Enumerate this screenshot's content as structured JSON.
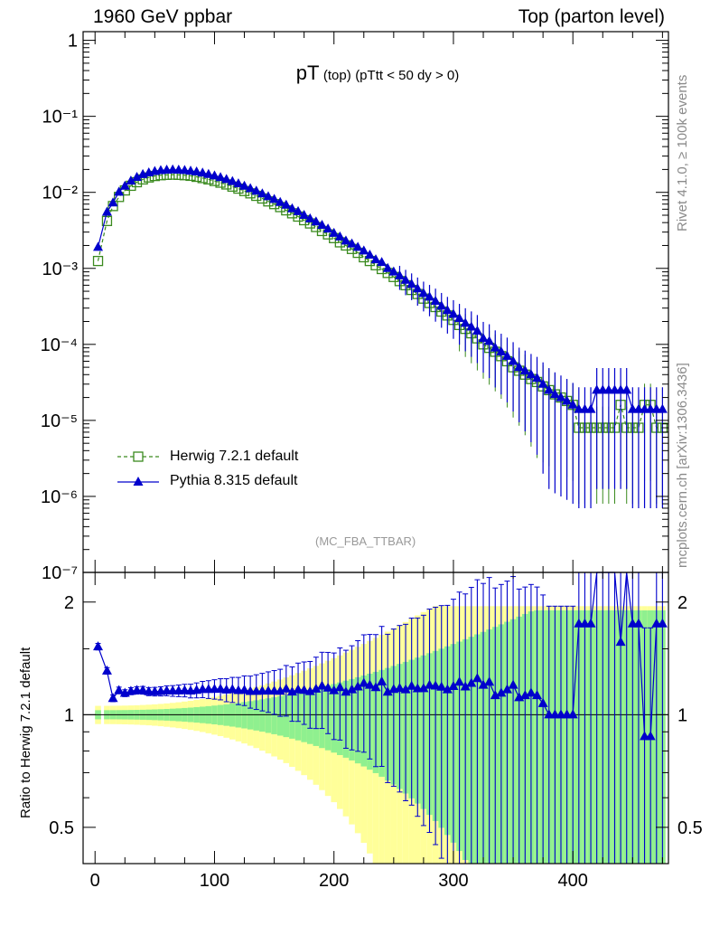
{
  "header": {
    "left": "1960 GeV ppbar",
    "right": "Top (parton level)"
  },
  "side_text": {
    "top": "Rivet 4.1.0, ≥ 100k events",
    "bottom": "mcplots.cern.ch [arXiv:1306.3436]"
  },
  "title": {
    "main": "pT",
    "sub1": "(top)",
    "sub2": "(pTtt < 50 dy > 0)"
  },
  "analysis_label": "(MC_FBA_TTBAR)",
  "legend": {
    "herwig": "Herwig 7.2.1 default",
    "pythia": "Pythia 8.315 default"
  },
  "ratio_ylabel": "Ratio to Herwig 7.2.1 default",
  "colors": {
    "herwig": "#3a8a1e",
    "pythia": "#0000cc",
    "band_inner": "#8ff08f",
    "band_outer": "#ffff99"
  },
  "chart_data": {
    "type": "line",
    "xlim": [
      -10,
      480
    ],
    "main_ylim": [
      1e-07,
      1.3
    ],
    "main_scale": "log",
    "main_yticks": [
      {
        "v": 1,
        "label": "1"
      },
      {
        "v": 0.1,
        "label": "10⁻¹"
      },
      {
        "v": 0.01,
        "label": "10⁻²"
      },
      {
        "v": 0.001,
        "label": "10⁻³"
      },
      {
        "v": 0.0001,
        "label": "10⁻⁴"
      },
      {
        "v": 1e-05,
        "label": "10⁻⁵"
      },
      {
        "v": 1e-06,
        "label": "10⁻⁶"
      },
      {
        "v": 1e-07,
        "label": "10⁻⁷"
      }
    ],
    "ratio_ylim": [
      0.4,
      2.4
    ],
    "ratio_scale": "log",
    "ratio_yticks": [
      {
        "v": 0.5,
        "label": "0.5"
      },
      {
        "v": 1,
        "label": "1"
      },
      {
        "v": 2,
        "label": "2"
      }
    ],
    "xticks": [
      {
        "v": 0,
        "label": "0"
      },
      {
        "v": 100,
        "label": "100"
      },
      {
        "v": 200,
        "label": "200"
      },
      {
        "v": 300,
        "label": "300"
      },
      {
        "v": 400,
        "label": "400"
      }
    ],
    "x": [
      2.5,
      10,
      15,
      20,
      25,
      30,
      35,
      40,
      45,
      50,
      55,
      60,
      65,
      70,
      75,
      80,
      85,
      90,
      95,
      100,
      105,
      110,
      115,
      120,
      125,
      130,
      135,
      140,
      145,
      150,
      155,
      160,
      165,
      170,
      175,
      180,
      185,
      190,
      195,
      200,
      205,
      210,
      215,
      220,
      225,
      230,
      235,
      240,
      245,
      250,
      255,
      260,
      265,
      270,
      275,
      280,
      285,
      290,
      295,
      300,
      305,
      310,
      315,
      320,
      325,
      330,
      335,
      340,
      345,
      350,
      355,
      360,
      365,
      370,
      375,
      380,
      385,
      390,
      395,
      400,
      405,
      410,
      415,
      420,
      425,
      430,
      435,
      440,
      445,
      450,
      455,
      460,
      465,
      470,
      475
    ],
    "series": [
      {
        "name": "Herwig 7.2.1 default",
        "marker": "open-square",
        "line": "dashed",
        "values": [
          0.00125,
          0.0042,
          0.0066,
          0.0087,
          0.0106,
          0.0122,
          0.0136,
          0.0148,
          0.0157,
          0.0164,
          0.0168,
          0.017,
          0.0171,
          0.017,
          0.0168,
          0.0165,
          0.016,
          0.0154,
          0.0148,
          0.0141,
          0.0134,
          0.0127,
          0.0119,
          0.0112,
          0.0104,
          0.0097,
          0.009,
          0.0083,
          0.0076,
          0.007,
          0.0064,
          0.0058,
          0.0053,
          0.0048,
          0.0043,
          0.0039,
          0.0035,
          0.0031,
          0.0028,
          0.0025,
          0.0022,
          0.002,
          0.0018,
          0.0016,
          0.0014,
          0.00125,
          0.0011,
          0.00098,
          0.00087,
          0.00077,
          0.00068,
          0.0006,
          0.00052,
          0.00046,
          0.0004,
          0.00035,
          0.00031,
          0.00027,
          0.00024,
          0.00021,
          0.00018,
          0.00016,
          0.00014,
          0.00012,
          0.0001,
          9e-05,
          8e-05,
          7e-05,
          6e-05,
          5e-05,
          4.5e-05,
          4e-05,
          3.5e-05,
          3.2e-05,
          2.8e-05,
          2.5e-05,
          2.2e-05,
          2e-05,
          1.8e-05,
          1.6e-05,
          8e-06,
          8e-06,
          8e-06,
          8e-06,
          8e-06,
          8e-06,
          8e-06,
          1.6e-05,
          8e-06,
          8e-06,
          8e-06,
          1.6e-05,
          1.6e-05,
          8e-06,
          8e-06
        ]
      },
      {
        "name": "Pythia 8.315 default",
        "marker": "filled-triangle",
        "line": "solid",
        "values": [
          0.0019,
          0.0055,
          0.0073,
          0.0101,
          0.0121,
          0.0141,
          0.0158,
          0.0172,
          0.0181,
          0.0189,
          0.0194,
          0.0197,
          0.0198,
          0.0197,
          0.0195,
          0.0191,
          0.0186,
          0.018,
          0.0173,
          0.0165,
          0.0157,
          0.0148,
          0.0139,
          0.013,
          0.0121,
          0.0112,
          0.0104,
          0.0096,
          0.0088,
          0.0081,
          0.0074,
          0.0068,
          0.0061,
          0.0056,
          0.005,
          0.0045,
          0.0041,
          0.0037,
          0.0033,
          0.0029,
          0.0026,
          0.0023,
          0.0021,
          0.0019,
          0.0017,
          0.0015,
          0.0013,
          0.0012,
          0.001,
          0.0009,
          0.0008,
          0.0007,
          0.00062,
          0.00054,
          0.00047,
          0.00042,
          0.00037,
          0.00032,
          0.00028,
          0.00025,
          0.00022,
          0.00019,
          0.00017,
          0.00015,
          0.00012,
          0.00011,
          9e-05,
          8e-05,
          7e-05,
          6e-05,
          5e-05,
          4.5e-05,
          4e-05,
          3.6e-05,
          3e-05,
          2.5e-05,
          2.2e-05,
          2e-05,
          1.8e-05,
          1.6e-05,
          1.4e-05,
          1.4e-05,
          1.4e-05,
          2.5e-05,
          2.5e-05,
          2.5e-05,
          2.5e-05,
          2.5e-05,
          2.5e-05,
          1.4e-05,
          1.4e-05,
          1.4e-05,
          1.4e-05,
          1.4e-05,
          1.4e-05
        ]
      }
    ]
  }
}
